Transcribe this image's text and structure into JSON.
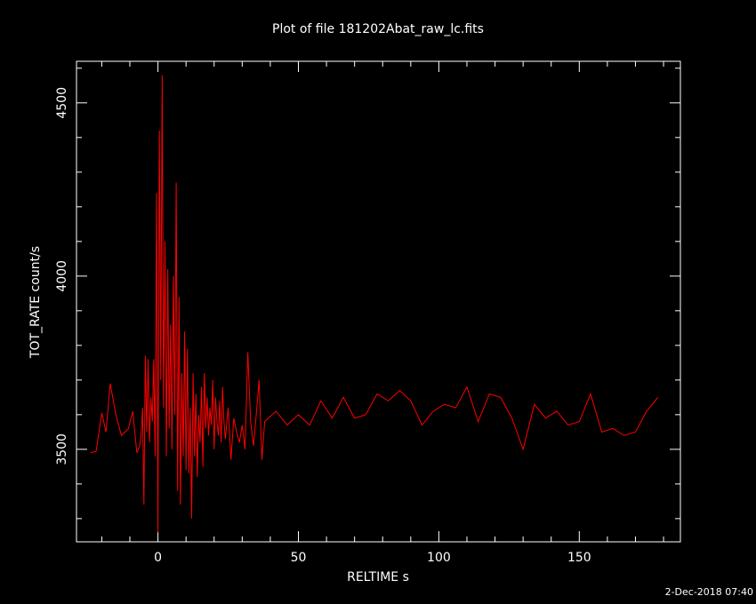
{
  "chart_data": {
    "type": "line",
    "title": "Plot of file 181202Abat_raw_lc.fits",
    "x_label": "RELTIME  s",
    "y_label": "TOT_RATE  count/s",
    "timestamp": "2-Dec-2018 07:40",
    "color": "#ff0000",
    "xlim": [
      -29,
      186
    ],
    "ylim": [
      3233,
      4620
    ],
    "xticks": [
      0,
      50,
      100,
      150
    ],
    "yticks": [
      3500,
      4000,
      4500
    ],
    "xminor": [
      -20,
      -10,
      10,
      20,
      30,
      40,
      60,
      70,
      80,
      90,
      110,
      120,
      130,
      140,
      160,
      170,
      180
    ],
    "yminor": [
      3300,
      3400,
      3600,
      3700,
      3800,
      3900,
      4100,
      4200,
      4300,
      4400,
      4600
    ],
    "x": [
      -24,
      -22,
      -20,
      -18.5,
      -17,
      -15,
      -13,
      -10.5,
      -9,
      -7.5,
      -6.5,
      -6,
      -5.5,
      -5,
      -4.5,
      -4,
      -3.5,
      -3,
      -2.5,
      -2,
      -1.5,
      -1,
      -0.5,
      0,
      0.5,
      1,
      1.5,
      2,
      2.5,
      3,
      3.5,
      4,
      4.5,
      5,
      5.5,
      6,
      6.5,
      7,
      7.5,
      8,
      8.5,
      9,
      9.5,
      10,
      10.5,
      11,
      11.5,
      12,
      12.5,
      13,
      13.5,
      14,
      14.5,
      15,
      15.5,
      16,
      16.5,
      17,
      17.5,
      18,
      18.5,
      19,
      19.5,
      20,
      20.5,
      21,
      21.5,
      22,
      22.5,
      23,
      23.5,
      24,
      25,
      26,
      27,
      28,
      29,
      30,
      31,
      32,
      33,
      34,
      35,
      36,
      37,
      38,
      42,
      46,
      50,
      54,
      58,
      62,
      66,
      70,
      74,
      78,
      82,
      86,
      90,
      94,
      98,
      102,
      106,
      110,
      114,
      118,
      122,
      126,
      130,
      134,
      138,
      142,
      146,
      150,
      154,
      158,
      162,
      166,
      170,
      174,
      178
    ],
    "values": [
      3490,
      3495,
      3605,
      3550,
      3690,
      3600,
      3540,
      3560,
      3610,
      3490,
      3510,
      3540,
      3620,
      3340,
      3770,
      3550,
      3760,
      3520,
      3650,
      3580,
      3760,
      3480,
      4240,
      3260,
      4420,
      3700,
      4580,
      3620,
      4100,
      3480,
      4020,
      3560,
      3860,
      3500,
      4000,
      3600,
      4270,
      3380,
      3940,
      3340,
      3720,
      3480,
      3840,
      3440,
      3790,
      3430,
      3620,
      3300,
      3720,
      3480,
      3660,
      3420,
      3600,
      3520,
      3680,
      3450,
      3720,
      3560,
      3650,
      3540,
      3620,
      3570,
      3700,
      3500,
      3650,
      3580,
      3540,
      3640,
      3520,
      3680,
      3580,
      3530,
      3620,
      3470,
      3590,
      3550,
      3520,
      3570,
      3500,
      3780,
      3580,
      3510,
      3600,
      3700,
      3470,
      3580,
      3610,
      3570,
      3600,
      3570,
      3640,
      3590,
      3650,
      3590,
      3600,
      3660,
      3640,
      3670,
      3640,
      3570,
      3610,
      3630,
      3620,
      3680,
      3580,
      3660,
      3650,
      3590,
      3500,
      3630,
      3590,
      3610,
      3570,
      3580,
      3660,
      3550,
      3560,
      3540,
      3550,
      3610,
      3650
    ]
  }
}
